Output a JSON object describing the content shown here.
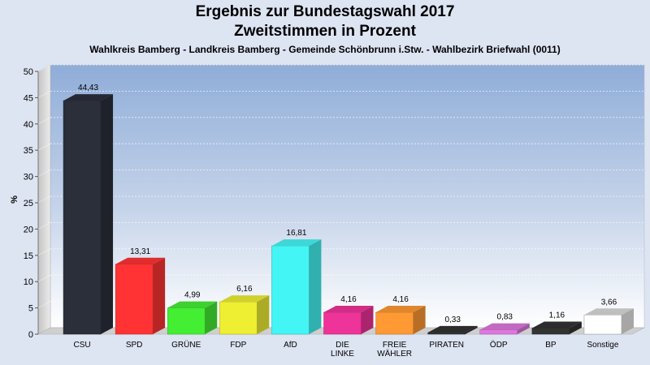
{
  "chart_data": {
    "type": "bar",
    "title": "Ergebnis zur Bundestagswahl 2017",
    "title2": "Zweitstimmen in Prozent",
    "subtitle": "Wahlkreis Bamberg - Landkreis Bamberg - Gemeinde Schönbrunn i.Stw. - Wahlbezirk Briefwahl (0011)",
    "ylabel": "%",
    "ylim": [
      0,
      50
    ],
    "yticks": [
      0,
      5,
      10,
      15,
      20,
      25,
      30,
      35,
      40,
      45,
      50
    ],
    "grid": true,
    "categories": [
      "CSU",
      "SPD",
      "GRÜNE",
      "FDP",
      "AfD",
      "DIE LINKE",
      "FREIE WÄHLER",
      "PIRATEN",
      "ÖDP",
      "BP",
      "Sonstige"
    ],
    "category_lines": [
      [
        "CSU"
      ],
      [
        "SPD"
      ],
      [
        "GRÜNE"
      ],
      [
        "FDP"
      ],
      [
        "AfD"
      ],
      [
        "DIE",
        "LINKE"
      ],
      [
        "FREIE",
        "WÄHLER"
      ],
      [
        "PIRATEN"
      ],
      [
        "ÖDP"
      ],
      [
        "BP"
      ],
      [
        "Sonstige"
      ]
    ],
    "values": [
      44.43,
      13.31,
      4.99,
      6.16,
      16.81,
      4.16,
      4.16,
      0.33,
      0.83,
      1.16,
      3.66
    ],
    "value_labels": [
      "44,43",
      "13,31",
      "4,99",
      "6,16",
      "16,81",
      "4,16",
      "4,16",
      "0,33",
      "0,83",
      "1,16",
      "3,66"
    ],
    "colors": [
      "#2b2f3a",
      "#ff3333",
      "#44ee33",
      "#eeee33",
      "#44f5f5",
      "#ee3399",
      "#ff9933",
      "#333333",
      "#dd77dd",
      "#333333",
      "#ffffff"
    ]
  }
}
